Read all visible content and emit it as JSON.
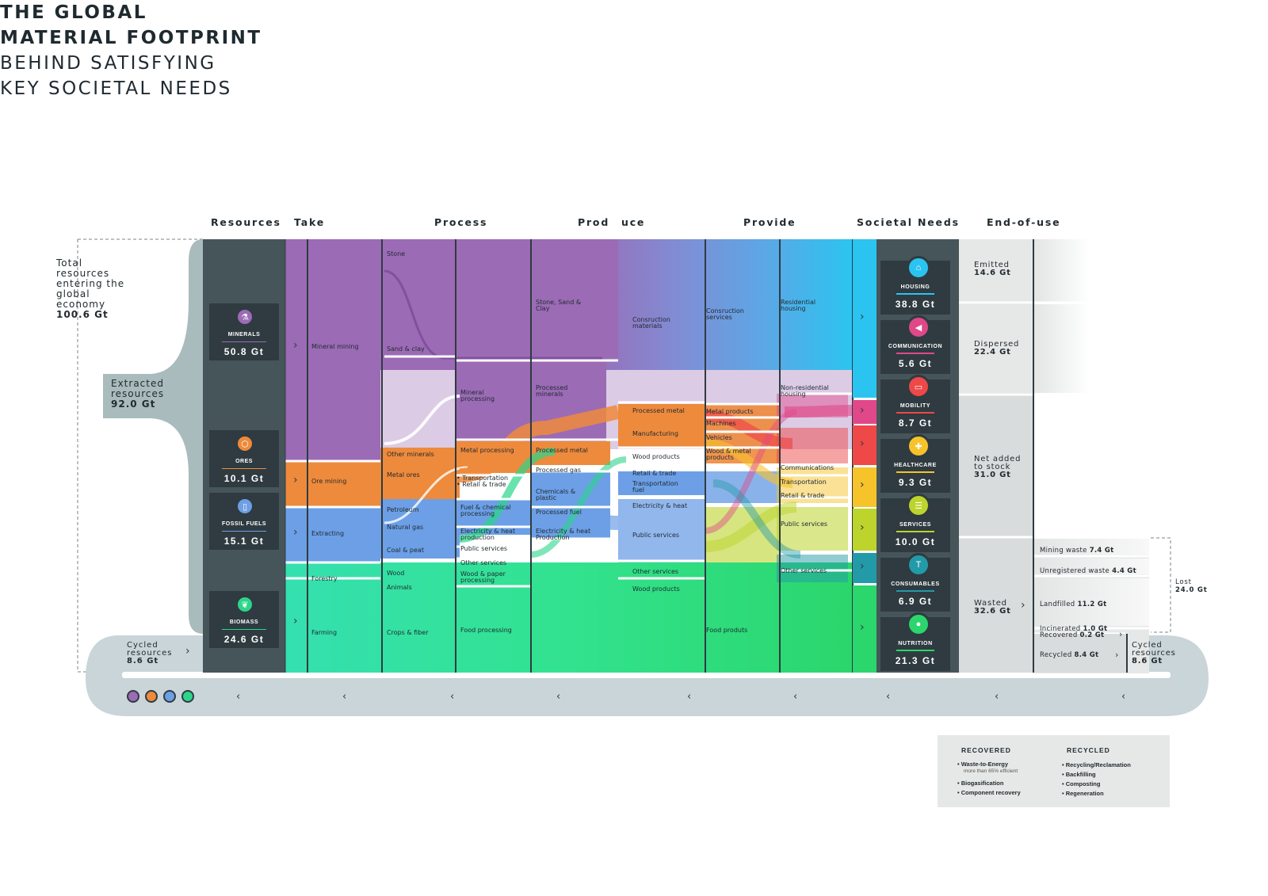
{
  "title": {
    "line1": "THE GLOBAL",
    "line2": "MATERIAL FOOTPRINT",
    "line3": "BEHIND SATISFYING",
    "line4": "KEY SOCIETAL NEEDS"
  },
  "columns": {
    "resources": "Resources",
    "take": "Take",
    "process": "Process",
    "produce_a": "Prod",
    "produce_b": "uce",
    "provide": "Provide",
    "societal_needs": "Societal Needs",
    "end_of_use": "End-of-use"
  },
  "left": {
    "total_label": "Total resources entering the global economy",
    "total_value": "100.6 Gt",
    "extracted_label": "Extracted resources",
    "extracted_value": "92.0 Gt",
    "cycled_label": "Cycled resources",
    "cycled_value": "8.6 Gt"
  },
  "resources": [
    {
      "name": "MINERALS",
      "value": "50.8 Gt",
      "color": "#9b6bb5",
      "icon": "flask-icon"
    },
    {
      "name": "ORES",
      "value": "10.1 Gt",
      "color": "#ee8a3c",
      "icon": "hexagon-icon"
    },
    {
      "name": "FOSSIL FUELS",
      "value": "15.1 Gt",
      "color": "#6c9fe6",
      "icon": "canister-icon"
    },
    {
      "name": "BIOMASS",
      "value": "24.6 Gt",
      "color": "#2bd68a",
      "icon": "leaf-icon"
    }
  ],
  "take": [
    "Mineral mining",
    "Ore mining",
    "Extracting",
    "Forestry",
    "Farming"
  ],
  "process_left": [
    "Stone",
    "Sand & clay",
    "Other minerals",
    "Metal ores",
    "Petroleum",
    "Natural gas",
    "Coal & peat",
    "Wood",
    "Animals",
    "Crops & fiber"
  ],
  "process_right": [
    "Mineral processing",
    "Metal processing",
    "• Transportation",
    "• Retail & trade",
    "Fuel & chemical processing",
    "Electricity & heat production",
    "Public services",
    "Other services",
    "Wood & paper processing",
    "Food processing"
  ],
  "produce_left": [
    "Stone, Sand & Clay",
    "Processed minerals",
    "Processed metal",
    "Processed gas",
    "Chemicals & plastic",
    "Processed fuel",
    "Electricity & heat Production"
  ],
  "produce_right": [
    "Consruction materials",
    "Processed metal",
    "Manufacturing",
    "Wood products",
    "Retail & trade",
    "Transportation fuel",
    "Electricity & heat",
    "Public services",
    "Other services",
    "Wood products"
  ],
  "provide_left": [
    "Consruction services",
    "Metal products",
    "Machines",
    "Vehicles",
    "Wood & metal products",
    "Food produts"
  ],
  "provide_right": [
    "Residential housing",
    "Non-residential housing",
    "Communications",
    "Transportation",
    "Retail & trade",
    "Public services",
    "Other services"
  ],
  "needs": [
    {
      "name": "HOUSING",
      "value": "38.8 Gt",
      "color": "#2bc4f0",
      "icon": "house-icon"
    },
    {
      "name": "COMMUNICATION",
      "value": "5.6 Gt",
      "color": "#e0488a",
      "icon": "megaphone-icon"
    },
    {
      "name": "MOBILITY",
      "value": "8.7 Gt",
      "color": "#ee4848",
      "icon": "truck-icon"
    },
    {
      "name": "HEALTHCARE",
      "value": "9.3 Gt",
      "color": "#f6c32b",
      "icon": "cross-icon"
    },
    {
      "name": "SERVICES",
      "value": "10.0 Gt",
      "color": "#bcd42b",
      "icon": "document-icon"
    },
    {
      "name": "CONSUMABLES",
      "value": "6.9 Gt",
      "color": "#239aa8",
      "icon": "shirt-icon"
    },
    {
      "name": "NUTRITION",
      "value": "21.3 Gt",
      "color": "#2bd66c",
      "icon": "apple-icon"
    }
  ],
  "end_of_use": [
    {
      "label": "Emitted",
      "value": "14.6 Gt"
    },
    {
      "label": "Dispersed",
      "value": "22.4 Gt"
    },
    {
      "label": "Net added to stock",
      "value": "31.0 Gt"
    },
    {
      "label": "Wasted",
      "value": "32.6 Gt"
    }
  ],
  "waste": [
    {
      "label": "Mining waste",
      "value": "7.4 Gt"
    },
    {
      "label": "Unregistered waste",
      "value": "4.4 Gt"
    },
    {
      "label": "Landfilled",
      "value": "11.2 Gt"
    },
    {
      "label": "Incinerated",
      "value": "1.0 Gt"
    },
    {
      "label": "Recovered",
      "value": "0.2 Gt"
    },
    {
      "label": "Recycled",
      "value": "8.4 Gt"
    }
  ],
  "lost": {
    "label": "Lost",
    "value": "24.0 Gt"
  },
  "cycled_right": {
    "label": "Cycled resources",
    "value": "8.6 Gt"
  },
  "legend": {
    "recovered_title": "RECOVERED",
    "recovered_items": [
      "Waste-to-Energy",
      "Biogasification",
      "Component recovery"
    ],
    "recovered_note": "more than 65% efficient",
    "recycled_title": "RECYCLED",
    "recycled_items": [
      "Recycling/Reclamation",
      "Backfilling",
      "Composting",
      "Regeneration"
    ]
  }
}
